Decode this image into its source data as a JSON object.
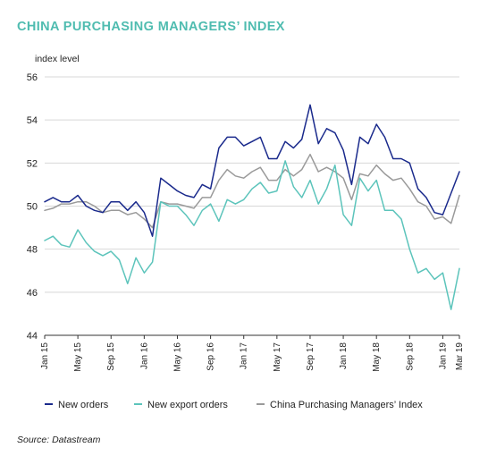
{
  "title": "CHINA PURCHASING MANAGERS’ INDEX",
  "source": "Source: Datastream",
  "colors": {
    "title": "#4fbcb0",
    "new_orders": "#1a2a8c",
    "new_export_orders": "#5cc4bb",
    "pmi": "#9a9a9a",
    "grid": "#d8d8d8",
    "axis": "#333333"
  },
  "chart_data": {
    "type": "line",
    "ylabel": "index level",
    "ylim": [
      44,
      56
    ],
    "yticks": [
      44,
      46,
      48,
      50,
      52,
      54,
      56
    ],
    "grid": "horizontal",
    "legend_position": "bottom",
    "x_start": "2015-01",
    "x_end": "2019-03",
    "x_tick_labels": [
      "Jan 15",
      "May 15",
      "Sep 15",
      "Jan 16",
      "May 16",
      "Sep 16",
      "Jan 17",
      "May 17",
      "Sep 17",
      "Jan 18",
      "May 18",
      "Sep 18",
      "Jan 19",
      "Mar 19"
    ],
    "x_tick_months": [
      "2015-01",
      "2015-05",
      "2015-09",
      "2016-01",
      "2016-05",
      "2016-09",
      "2017-01",
      "2017-05",
      "2017-09",
      "2018-01",
      "2018-05",
      "2018-09",
      "2019-01",
      "2019-03"
    ],
    "series": [
      {
        "name": "New orders",
        "color": "#1a2a8c",
        "values": [
          50.2,
          50.4,
          50.2,
          50.2,
          50.5,
          50.0,
          49.8,
          49.7,
          50.2,
          50.2,
          49.8,
          50.2,
          49.7,
          48.6,
          51.3,
          51.0,
          50.7,
          50.5,
          50.4,
          51.0,
          50.8,
          52.7,
          53.2,
          53.2,
          52.8,
          53.0,
          53.2,
          52.2,
          52.2,
          53.0,
          52.7,
          53.1,
          54.7,
          52.9,
          53.6,
          53.4,
          52.6,
          51.0,
          53.2,
          52.9,
          53.8,
          53.2,
          52.2,
          52.2,
          52.0,
          50.8,
          50.4,
          49.7,
          49.6,
          50.6,
          51.6
        ]
      },
      {
        "name": "New export orders",
        "color": "#5cc4bb",
        "values": [
          48.4,
          48.6,
          48.2,
          48.1,
          48.9,
          48.3,
          47.9,
          47.7,
          47.9,
          47.5,
          46.4,
          47.6,
          46.9,
          47.4,
          50.2,
          50.0,
          50.0,
          49.6,
          49.1,
          49.8,
          50.1,
          49.3,
          50.3,
          50.1,
          50.3,
          50.8,
          51.1,
          50.6,
          50.7,
          52.1,
          50.9,
          50.4,
          51.2,
          50.1,
          50.8,
          51.9,
          49.6,
          49.1,
          51.3,
          50.7,
          51.2,
          49.8,
          49.8,
          49.4,
          48.0,
          46.9,
          47.1,
          46.6,
          46.9,
          45.2,
          47.1
        ]
      },
      {
        "name": "China Purchasing Managers’ Index",
        "color": "#9a9a9a",
        "values": [
          49.8,
          49.9,
          50.1,
          50.1,
          50.2,
          50.2,
          50.0,
          49.7,
          49.8,
          49.8,
          49.6,
          49.7,
          49.4,
          49.0,
          50.2,
          50.1,
          50.1,
          50.0,
          49.9,
          50.4,
          50.4,
          51.2,
          51.7,
          51.4,
          51.3,
          51.6,
          51.8,
          51.2,
          51.2,
          51.7,
          51.4,
          51.7,
          52.4,
          51.6,
          51.8,
          51.6,
          51.3,
          50.3,
          51.5,
          51.4,
          51.9,
          51.5,
          51.2,
          51.3,
          50.8,
          50.2,
          50.0,
          49.4,
          49.5,
          49.2,
          50.5
        ]
      }
    ]
  }
}
